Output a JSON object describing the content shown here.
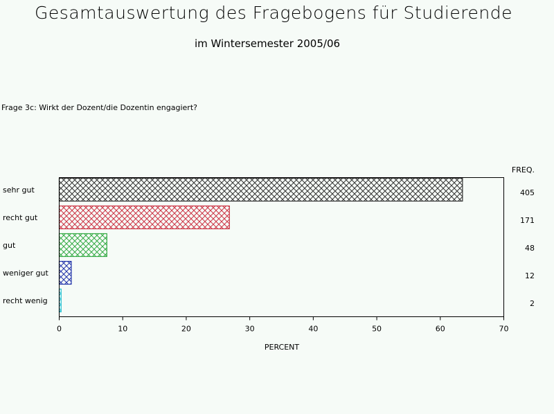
{
  "title": "Gesamtauswertung des Fragebogens für Studierende",
  "subtitle": "im Wintersemester 2005/06",
  "question": "Frage 3c: Wirkt der Dozent/die Dozentin engagiert?",
  "colors": {
    "background": "#f6fbf7",
    "axis": "#000000"
  },
  "chart_data": {
    "type": "bar",
    "orientation": "horizontal",
    "categories": [
      "sehr gut",
      "recht gut",
      "gut",
      "weniger gut",
      "recht wenig"
    ],
    "values": [
      63.5,
      26.8,
      7.5,
      1.9,
      0.3
    ],
    "freq": [
      "405",
      "171",
      "48",
      "12",
      "2"
    ],
    "freq_label": "FREQ.",
    "colors": [
      "#333333",
      "#cc3344",
      "#33aa44",
      "#2233aa",
      "#22bbcc"
    ],
    "pattern": "crosshatch",
    "xlabel": "PERCENT",
    "xlim": [
      0,
      70
    ],
    "xticks": [
      "0",
      "10",
      "20",
      "30",
      "40",
      "50",
      "60",
      "70"
    ],
    "grid": false
  }
}
